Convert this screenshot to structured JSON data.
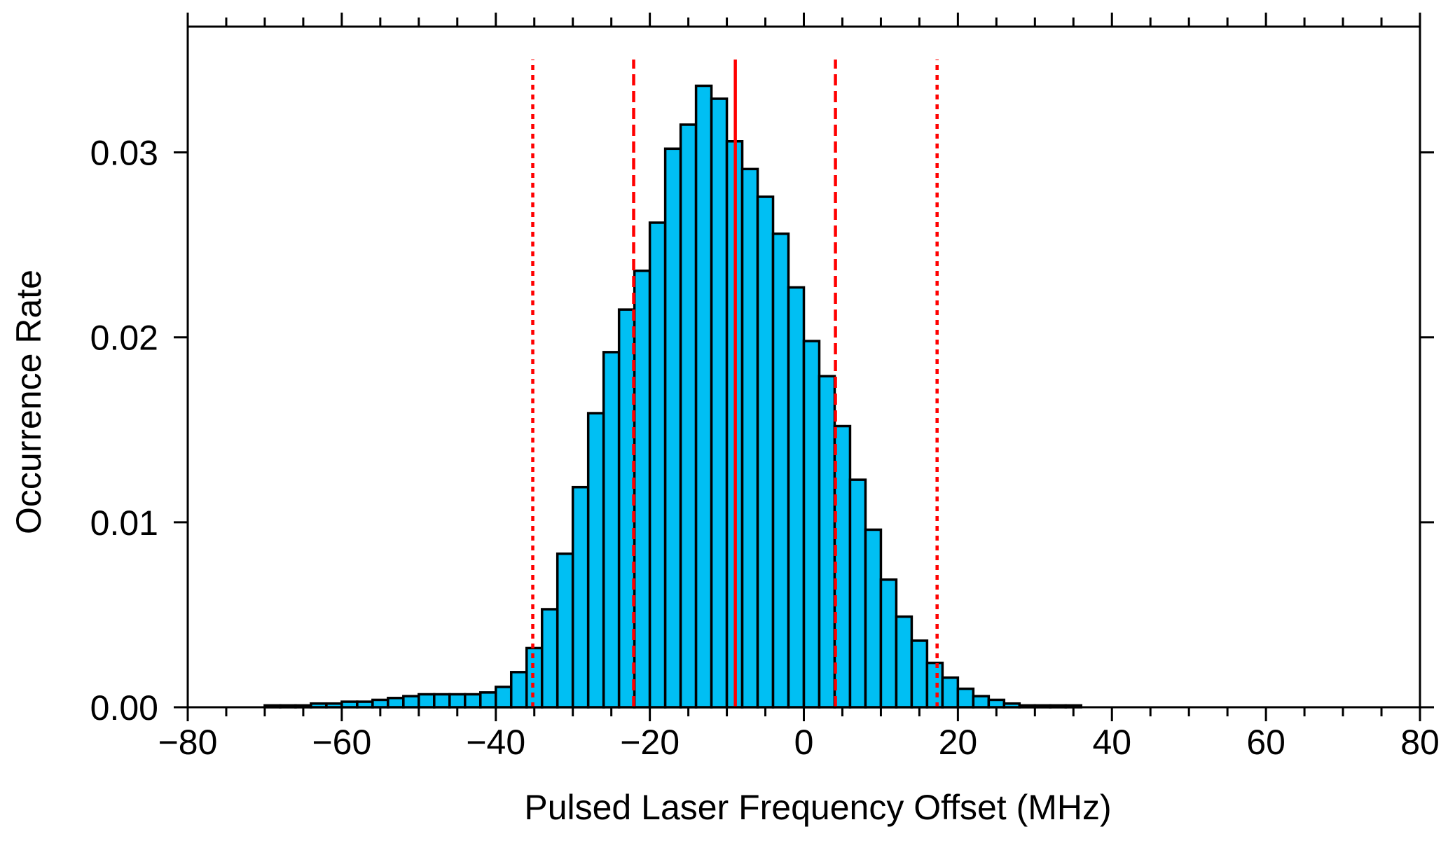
{
  "chart_data": {
    "type": "bar",
    "title": "",
    "xlabel": "Pulsed Laser Frequency Offset  (MHz)",
    "ylabel": "Occurrence Rate",
    "xlim": [
      -80,
      80
    ],
    "ylim": [
      0,
      0.0368
    ],
    "x_ticks": [
      -80,
      -60,
      -40,
      -20,
      0,
      20,
      40,
      60,
      80
    ],
    "x_tick_labels": [
      "−80",
      "−60",
      "−40",
      "−20",
      "0",
      "20",
      "40",
      "60",
      "80"
    ],
    "y_ticks": [
      0.0,
      0.01,
      0.02,
      0.03
    ],
    "y_tick_labels": [
      "0.00",
      "0.01",
      "0.02",
      "0.03"
    ],
    "bin_width": 2,
    "bin_start": -70,
    "values": [
      0.0001,
      0.0001,
      0.0001,
      0.0002,
      0.0002,
      0.0003,
      0.0003,
      0.0004,
      0.0005,
      0.0006,
      0.0007,
      0.0007,
      0.0007,
      0.0007,
      0.0008,
      0.0011,
      0.0019,
      0.0032,
      0.0053,
      0.0083,
      0.0119,
      0.0159,
      0.0192,
      0.0215,
      0.0236,
      0.0262,
      0.0302,
      0.0315,
      0.0336,
      0.0329,
      0.0306,
      0.0291,
      0.0276,
      0.0256,
      0.0227,
      0.0198,
      0.0179,
      0.0152,
      0.0123,
      0.0096,
      0.0069,
      0.0049,
      0.0036,
      0.0024,
      0.0016,
      0.001,
      0.0006,
      0.0004,
      0.0002,
      0.0001,
      0.0001,
      0.0001,
      0.0001
    ],
    "bar_color": "#00BFF3",
    "edge_color": "#000000",
    "reference_lines": [
      {
        "x": -8.9,
        "style": "solid"
      },
      {
        "x": -22.1,
        "style": "dashed"
      },
      {
        "x": 4.1,
        "style": "dashed"
      },
      {
        "x": -35.2,
        "style": "dotted"
      },
      {
        "x": 17.3,
        "style": "dotted"
      }
    ],
    "reference_line_color": "#FF0000",
    "grid": false,
    "legend": "none"
  }
}
